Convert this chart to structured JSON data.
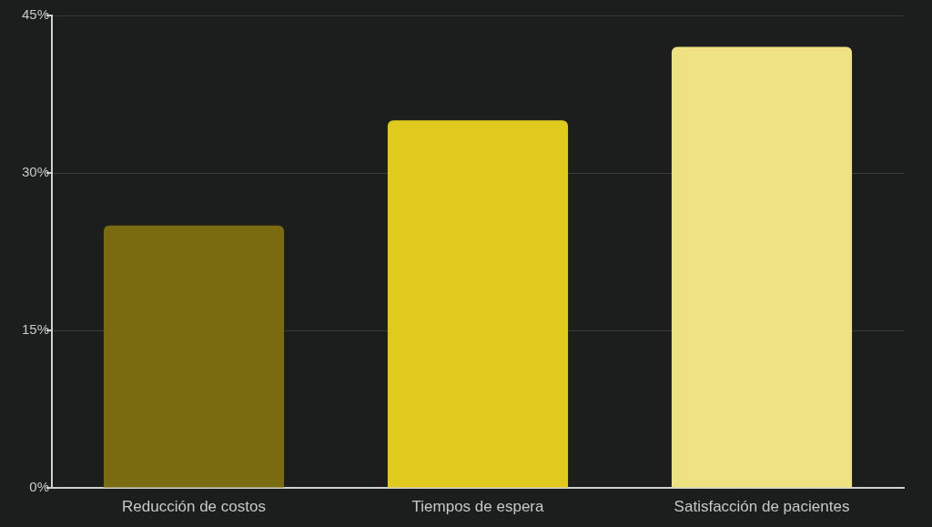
{
  "chart_data": {
    "type": "bar",
    "categories": [
      "Reducción de costos",
      "Tiempos de espera",
      "Satisfacción de pacientes"
    ],
    "values": [
      25,
      35,
      42
    ],
    "colors": [
      "#7a6a10",
      "#e0ca1e",
      "#efe282"
    ],
    "ylim": [
      0,
      45
    ],
    "yticks": [
      {
        "value": 0,
        "label": "0%"
      },
      {
        "value": 15,
        "label": "15%"
      },
      {
        "value": 30,
        "label": "30%"
      },
      {
        "value": 45,
        "label": "45%"
      }
    ],
    "grid": "y"
  }
}
